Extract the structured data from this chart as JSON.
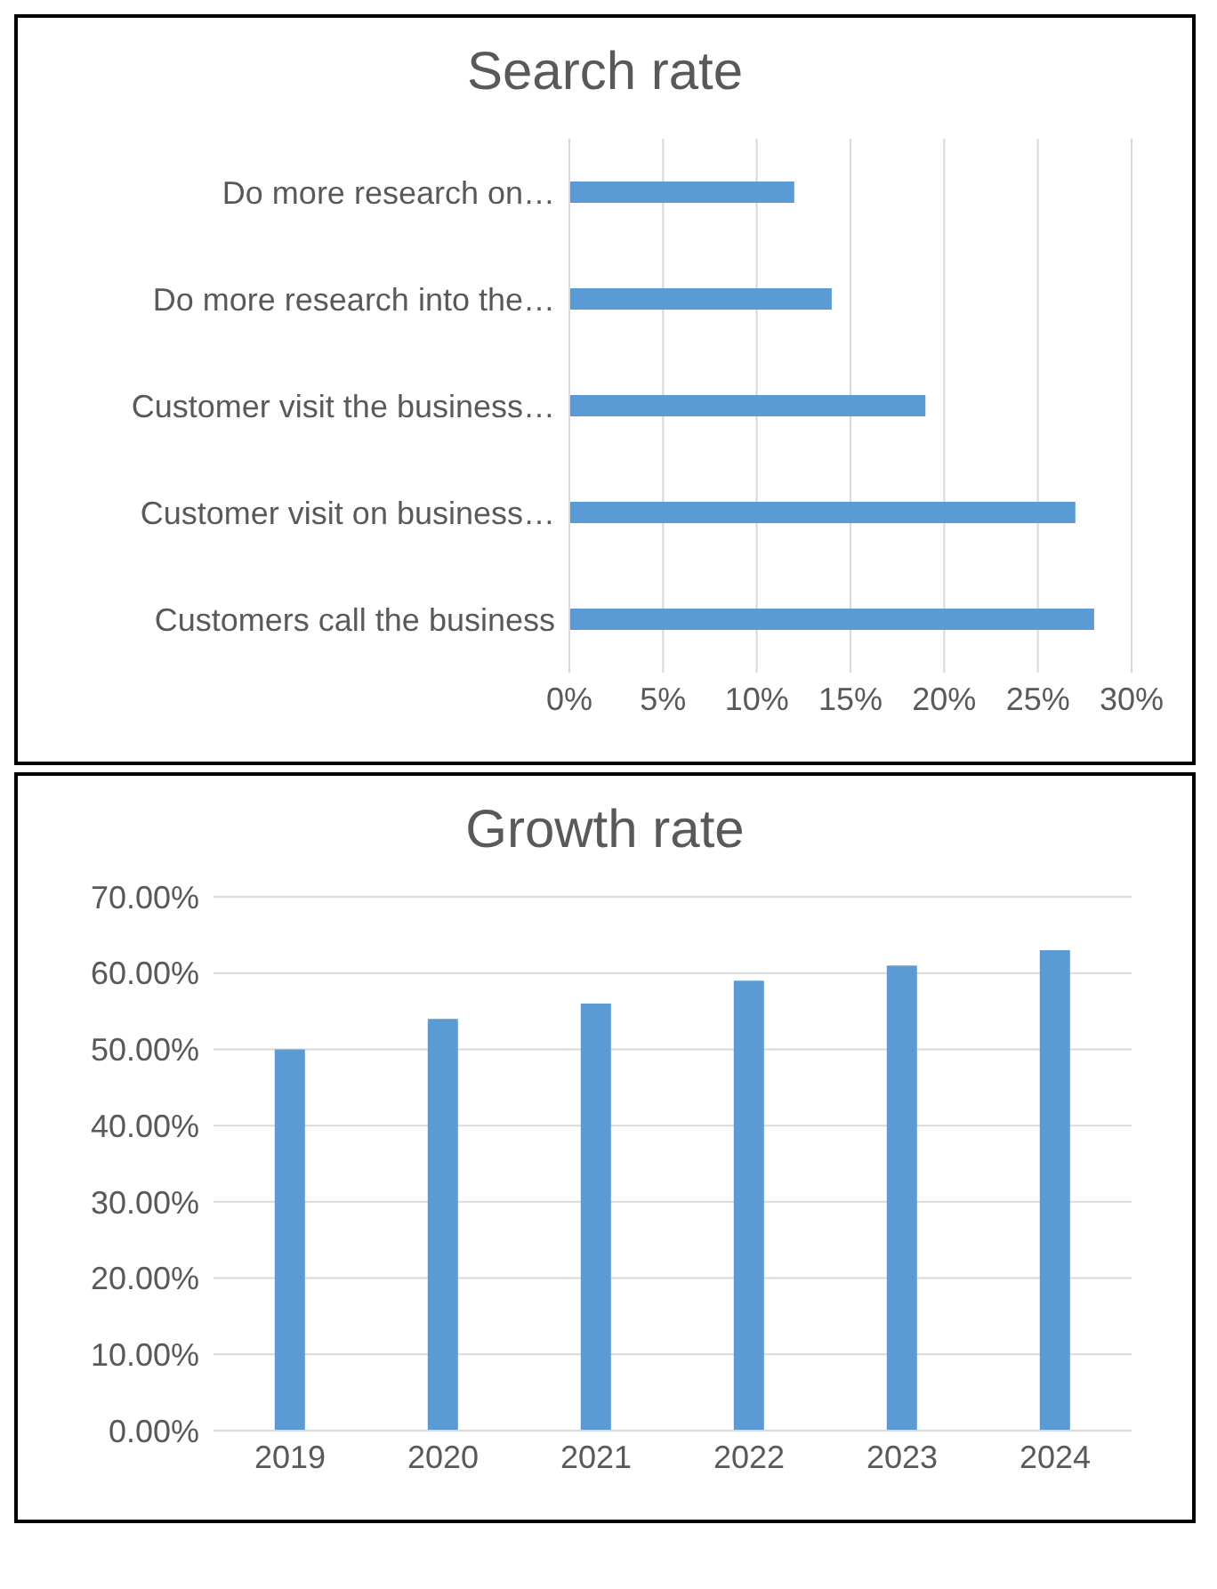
{
  "chart_data": [
    {
      "type": "bar",
      "title": "Search rate",
      "orientation": "horizontal",
      "categories": [
        "Do more research on…",
        "Do more research into the…",
        "Customer visit the business…",
        "Customer visit on business…",
        "Customers call the business"
      ],
      "values": [
        12,
        14,
        19,
        27,
        28
      ],
      "color": "#5b9bd5",
      "xlim": [
        0,
        30
      ],
      "xticks": [
        {
          "value": 0,
          "label": "0%"
        },
        {
          "value": 5,
          "label": "5%"
        },
        {
          "value": 10,
          "label": "10%"
        },
        {
          "value": 15,
          "label": "15%"
        },
        {
          "value": 20,
          "label": "20%"
        },
        {
          "value": 25,
          "label": "25%"
        },
        {
          "value": 30,
          "label": "30%"
        }
      ],
      "grid": "x"
    },
    {
      "type": "bar",
      "title": "Growth rate",
      "categories": [
        "2019",
        "2020",
        "2021",
        "2022",
        "2023",
        "2024"
      ],
      "values": [
        50,
        54,
        56,
        59,
        61,
        63
      ],
      "color": "#5b9bd5",
      "ylim": [
        0,
        70
      ],
      "yticks": [
        {
          "value": 0,
          "label": "0.00%"
        },
        {
          "value": 10,
          "label": "10.00%"
        },
        {
          "value": 20,
          "label": "20.00%"
        },
        {
          "value": 30,
          "label": "30.00%"
        },
        {
          "value": 40,
          "label": "40.00%"
        },
        {
          "value": 50,
          "label": "50.00%"
        },
        {
          "value": 60,
          "label": "60.00%"
        },
        {
          "value": 70,
          "label": "70.00%"
        }
      ],
      "grid": "y"
    }
  ]
}
